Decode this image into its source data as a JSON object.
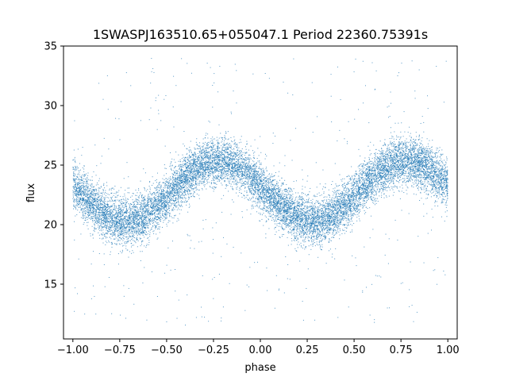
{
  "chart_data": {
    "type": "scatter",
    "title": "1SWASPJ163510.65+055047.1 Period 22360.75391s",
    "xlabel": "phase",
    "ylabel": "flux",
    "xlim": [
      -1.05,
      1.05
    ],
    "ylim": [
      10.4,
      35
    ],
    "x_ticks": [
      -1.0,
      -0.75,
      -0.5,
      -0.25,
      0.0,
      0.25,
      0.5,
      0.75,
      1.0
    ],
    "x_tick_labels": [
      "−1.00",
      "−0.75",
      "−0.50",
      "−0.25",
      "0.00",
      "0.25",
      "0.50",
      "0.75",
      "1.00"
    ],
    "y_ticks": [
      15,
      20,
      25,
      30,
      35
    ],
    "y_tick_labels": [
      "15",
      "20",
      "25",
      "30",
      "35"
    ],
    "grid": false,
    "marker_color": "#1f77b4",
    "model": {
      "description": "folded light curve, sinusoid with period 1.0 in phase",
      "mean_flux": 22.8,
      "amplitude": 2.55,
      "peak_phases": [
        -0.22,
        0.78
      ],
      "trough_phases": [
        -0.72,
        0.28
      ],
      "scatter_sigma": 1.0
    },
    "phase_range": [
      -1.0,
      1.0
    ],
    "n_points": 14000,
    "outlier_fraction": 0.03,
    "outlier_range": [
      11.5,
      34
    ]
  }
}
